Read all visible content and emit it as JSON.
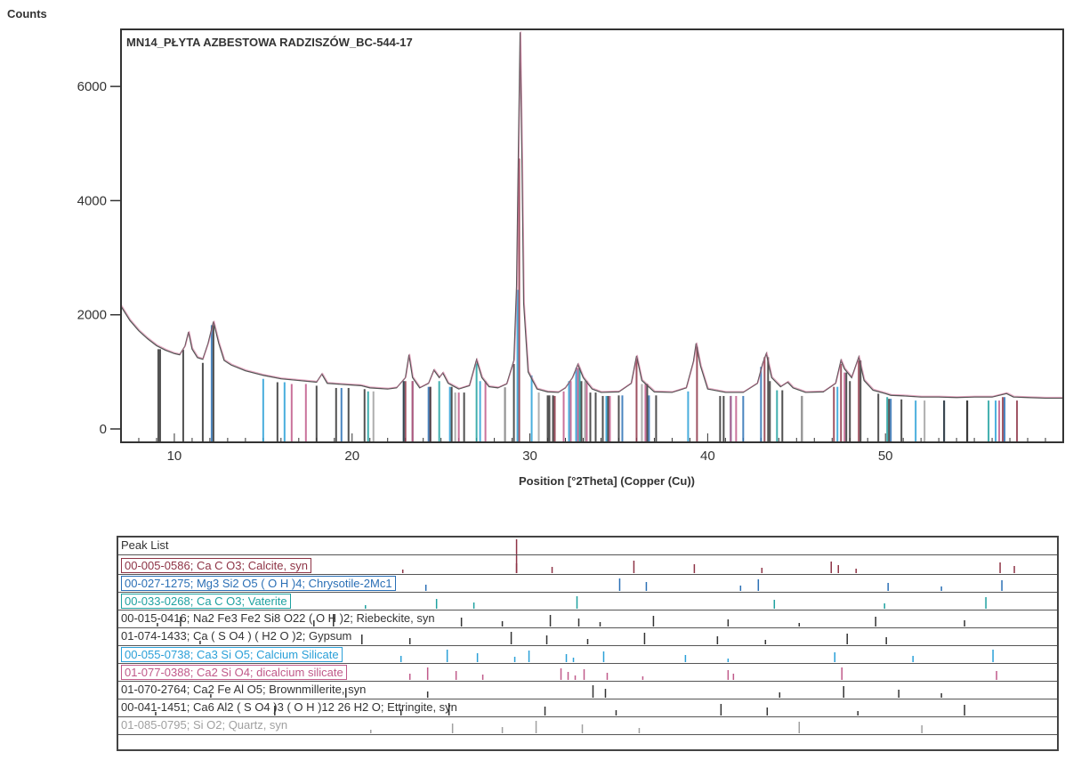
{
  "chart_data": {
    "type": "line",
    "title": "MN14_PŁYTA AZBESTOWA RADZISZÓW_BC-544-17",
    "ylabel": "Counts",
    "xlabel": "Position [°2Theta] (Copper (Cu))",
    "xlim": [
      7,
      60
    ],
    "ylim": [
      0,
      7000
    ],
    "x_ticks": [
      10,
      20,
      30,
      40,
      50
    ],
    "y_ticks": [
      0,
      2000,
      4000,
      6000
    ],
    "grid": false,
    "series": [
      {
        "color": "#555555",
        "points": [
          [
            7,
            2150
          ],
          [
            7.5,
            1900
          ],
          [
            8,
            1720
          ],
          [
            8.5,
            1580
          ],
          [
            9,
            1460
          ],
          [
            9.5,
            1380
          ],
          [
            10,
            1320
          ],
          [
            10.3,
            1300
          ],
          [
            10.6,
            1450
          ],
          [
            10.8,
            1700
          ],
          [
            11.0,
            1400
          ],
          [
            11.3,
            1250
          ],
          [
            11.6,
            1220
          ],
          [
            11.9,
            1500
          ],
          [
            12.2,
            1880
          ],
          [
            12.5,
            1500
          ],
          [
            12.8,
            1200
          ],
          [
            13.2,
            1120
          ],
          [
            14,
            1020
          ],
          [
            15,
            940
          ],
          [
            16,
            880
          ],
          [
            17,
            850
          ],
          [
            18,
            820
          ],
          [
            18.3,
            960
          ],
          [
            18.6,
            800
          ],
          [
            19.5,
            780
          ],
          [
            20.5,
            760
          ],
          [
            21,
            720
          ],
          [
            22,
            700
          ],
          [
            22.5,
            720
          ],
          [
            23.0,
            900
          ],
          [
            23.2,
            1300
          ],
          [
            23.4,
            900
          ],
          [
            23.8,
            720
          ],
          [
            24.3,
            800
          ],
          [
            24.6,
            1030
          ],
          [
            24.9,
            900
          ],
          [
            25.1,
            980
          ],
          [
            25.4,
            800
          ],
          [
            26,
            700
          ],
          [
            26.6,
            760
          ],
          [
            27.0,
            1210
          ],
          [
            27.3,
            900
          ],
          [
            27.7,
            740
          ],
          [
            28.2,
            720
          ],
          [
            28.7,
            790
          ],
          [
            29.1,
            1200
          ],
          [
            29.25,
            2500
          ],
          [
            29.35,
            4800
          ],
          [
            29.45,
            6950
          ],
          [
            29.55,
            4800
          ],
          [
            29.65,
            2200
          ],
          [
            29.9,
            1000
          ],
          [
            30.4,
            700
          ],
          [
            31,
            650
          ],
          [
            31.6,
            640
          ],
          [
            32.0,
            720
          ],
          [
            32.4,
            900
          ],
          [
            32.7,
            1130
          ],
          [
            33.0,
            900
          ],
          [
            33.5,
            700
          ],
          [
            34,
            640
          ],
          [
            35,
            650
          ],
          [
            35.7,
            800
          ],
          [
            36.0,
            1280
          ],
          [
            36.3,
            850
          ],
          [
            37,
            650
          ],
          [
            38,
            640
          ],
          [
            38.8,
            720
          ],
          [
            39.2,
            1180
          ],
          [
            39.35,
            1500
          ],
          [
            39.6,
            1100
          ],
          [
            40,
            700
          ],
          [
            41,
            640
          ],
          [
            42,
            640
          ],
          [
            42.8,
            800
          ],
          [
            43.1,
            1150
          ],
          [
            43.3,
            1320
          ],
          [
            43.6,
            900
          ],
          [
            44.1,
            740
          ],
          [
            44.5,
            820
          ],
          [
            44.8,
            720
          ],
          [
            45.5,
            640
          ],
          [
            46.5,
            650
          ],
          [
            47.2,
            800
          ],
          [
            47.5,
            1200
          ],
          [
            47.7,
            1050
          ],
          [
            48.1,
            900
          ],
          [
            48.5,
            1260
          ],
          [
            48.8,
            850
          ],
          [
            49.3,
            680
          ],
          [
            50,
            620
          ],
          [
            50.3,
            590
          ],
          [
            51,
            580
          ],
          [
            52,
            560
          ],
          [
            53,
            560
          ],
          [
            54,
            550
          ],
          [
            55,
            560
          ],
          [
            56,
            560
          ],
          [
            56.8,
            620
          ],
          [
            57.2,
            560
          ],
          [
            58,
            550
          ],
          [
            59,
            540
          ],
          [
            60,
            540
          ]
        ]
      }
    ],
    "reference_sticks": [
      {
        "label": "00-005-0586",
        "color": "#8e3446",
        "positions": [
          23.0,
          29.4,
          31.4,
          36.0,
          39.4,
          43.2,
          47.1,
          47.5,
          48.5,
          56.6,
          57.4
        ]
      },
      {
        "label": "00-027-1275",
        "color": "#2a6fb5",
        "positions": [
          12.1,
          19.4,
          24.3,
          35.2,
          36.7,
          42.0,
          43.0,
          50.3,
          53.3,
          56.7
        ]
      },
      {
        "label": "00-033-0268",
        "color": "#1ea1a0",
        "positions": [
          20.9,
          24.9,
          27.0,
          32.8,
          43.9,
          50.1,
          55.8
        ]
      },
      {
        "label": "00-015-0416",
        "color": "#333333",
        "positions": [
          9.2,
          10.5,
          18.0,
          19.1,
          26.3,
          28.6,
          31.3,
          32.9,
          34.1,
          37.1,
          41.3,
          45.3,
          49.6,
          54.6
        ]
      },
      {
        "label": "01-074-1433",
        "color": "#333333",
        "positions": [
          11.6,
          20.7,
          23.4,
          29.1,
          31.1,
          33.4,
          36.6,
          40.7,
          43.4,
          48.0,
          50.2
        ]
      },
      {
        "label": "00-055-0738",
        "color": "#2aa0d8",
        "positions": [
          15.0,
          16.2,
          22.9,
          25.5,
          27.2,
          29.3,
          30.1,
          32.2,
          32.6,
          34.3,
          38.9,
          41.3,
          47.3,
          51.7,
          56.2
        ]
      },
      {
        "label": "01-077-0388",
        "color": "#c05a8a",
        "positions": [
          16.6,
          17.4,
          23.4,
          24.4,
          26.0,
          27.5,
          31.9,
          32.3,
          32.7,
          33.2,
          34.5,
          36.5,
          41.3,
          41.6,
          47.7,
          56.4
        ]
      },
      {
        "label": "01-070-2764",
        "color": "#333333",
        "positions": [
          12.2,
          19.8,
          24.4,
          33.7,
          34.4,
          44.2,
          47.8,
          50.9,
          53.3
        ]
      },
      {
        "label": "00-041-1451",
        "color": "#333333",
        "positions": [
          9.1,
          15.8,
          22.9,
          25.6,
          31.0,
          35.0,
          40.9,
          43.5,
          48.6,
          54.6
        ]
      },
      {
        "label": "01-085-0795",
        "color": "#a0a0a0",
        "positions": [
          21.2,
          25.8,
          28.6,
          30.5,
          33.1,
          36.3,
          45.3,
          52.2
        ]
      }
    ]
  },
  "peak_panel": {
    "header": "Peak List",
    "rows": [
      {
        "text": "00-005-0586; Ca C O3; Calcite, syn",
        "color": "#8e3446"
      },
      {
        "text": "00-027-1275; Mg3 Si2 O5 ( O H )4; Chrysotile-2Mc1",
        "color": "#2a6fb5"
      },
      {
        "text": "00-033-0268; Ca C O3; Vaterite",
        "color": "#1ea1a0"
      },
      {
        "text": "00-015-0416; Na2 Fe3 Fe2 Si8 O22 ( O H )2; Riebeckite, syn",
        "color": "#333333"
      },
      {
        "text": "01-074-1433; Ca ( S O4 ) ( H2 O )2; Gypsum",
        "color": "#333333"
      },
      {
        "text": "00-055-0738; Ca3 Si O5; Calcium Silicate",
        "color": "#2aa0d8"
      },
      {
        "text": "01-077-0388; Ca2 Si O4; dicalcium silicate",
        "color": "#c05a8a"
      },
      {
        "text": "01-070-2764; Ca2 Fe Al O5; Brownmillerite, syn",
        "color": "#333333"
      },
      {
        "text": "00-041-1451; Ca6 Al2 ( S O4 )3 ( O H )12 26 H2 O; Ettringite, syn",
        "color": "#333333"
      },
      {
        "text": "01-085-0795; Si O2; Quartz, syn",
        "color": "#a0a0a0"
      }
    ]
  }
}
